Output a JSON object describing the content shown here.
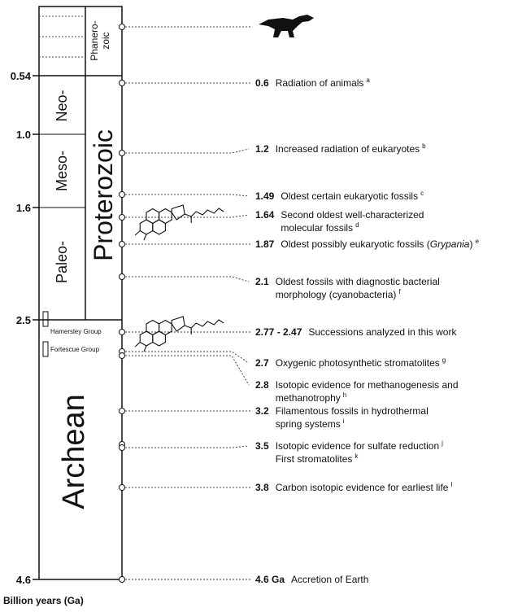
{
  "axis": {
    "ticks": [
      "0.54",
      "1.0",
      "1.6",
      "2.5",
      "4.6"
    ],
    "label": "Billion years (Ga)"
  },
  "eons": {
    "phanerozoic": [
      "Phanero-",
      "zoic"
    ],
    "proterozoic": "Proterozoic",
    "archean": "Archean"
  },
  "eras": [
    "Neo-",
    "Meso-",
    "Paleo-"
  ],
  "groups": [
    "Hamersley Group",
    "Fortescue Group"
  ],
  "events": [
    {
      "value": "0.6",
      "lines": [
        {
          "text": "Radiation of animals",
          "note": "a"
        }
      ]
    },
    {
      "value": "1.2",
      "lines": [
        {
          "text": "Increased radiation of eukaryotes",
          "note": "b"
        }
      ]
    },
    {
      "value": "1.49",
      "lines": [
        {
          "text": "Oldest certain eukaryotic fossils",
          "note": "c"
        }
      ]
    },
    {
      "value": "1.64",
      "lines": [
        {
          "text": "Second oldest well-characterized"
        },
        {
          "text": "molecular fossils",
          "note": "d"
        }
      ]
    },
    {
      "value": "1.87",
      "lines": [
        {
          "text": "Oldest possibly eukaryotic fossils (",
          "italic": "Grypania",
          "text_end": ")",
          "note": "e"
        }
      ]
    },
    {
      "value": "2.1",
      "lines": [
        {
          "text": "Oldest fossils with diagnostic bacterial"
        },
        {
          "text": "morphology (cyanobacteria)",
          "note": "f"
        }
      ]
    },
    {
      "value": "2.77 - 2.47",
      "lines": [
        {
          "text": "Successions analyzed in this work"
        }
      ]
    },
    {
      "value": "2.7",
      "lines": [
        {
          "text": "Oxygenic photosynthetic stromatolites",
          "note": "g"
        }
      ]
    },
    {
      "value": "2.8",
      "lines": [
        {
          "text": "Isotopic evidence for methanogenesis and"
        },
        {
          "text": "methanotrophy",
          "note": "h"
        }
      ]
    },
    {
      "value": "3.2",
      "lines": [
        {
          "text": "Filamentous fossils in hydrothermal"
        },
        {
          "text": "spring systems",
          "note": "i"
        }
      ]
    },
    {
      "value": "3.5",
      "lines": [
        {
          "text": "Isotopic evidence for sulfate reduction",
          "note": "j"
        },
        {
          "text": "First stromatolites",
          "note": "k"
        }
      ]
    },
    {
      "value": "3.8",
      "lines": [
        {
          "text": "Carbon isotopic evidence for earliest life",
          "note": "l"
        }
      ]
    },
    {
      "value": "4.6 Ga",
      "lines": [
        {
          "text": "Accretion of Earth"
        }
      ]
    }
  ]
}
